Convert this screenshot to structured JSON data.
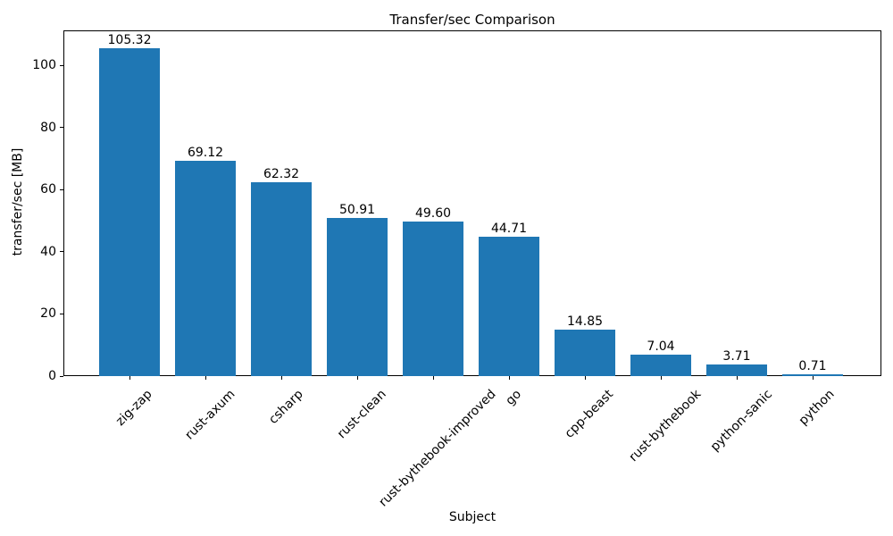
{
  "chart_data": {
    "type": "bar",
    "title": "Transfer/sec Comparison",
    "xlabel": "Subject",
    "ylabel": "transfer/sec [MB]",
    "categories": [
      "zig-zap",
      "rust-axum",
      "csharp",
      "rust-clean",
      "rust-bythebook-improved",
      "go",
      "cpp-beast",
      "rust-bythebook",
      "python-sanic",
      "python"
    ],
    "values": [
      105.32,
      69.12,
      62.32,
      50.91,
      49.6,
      44.71,
      14.85,
      7.04,
      3.71,
      0.71
    ],
    "value_labels": [
      "105.32",
      "69.12",
      "62.32",
      "50.91",
      "49.60",
      "44.71",
      "14.85",
      "7.04",
      "3.71",
      "0.71"
    ],
    "yticks": [
      0,
      20,
      40,
      60,
      80,
      100
    ],
    "ylim": [
      0,
      111.2
    ],
    "xtick_rotation": 45,
    "grid": false,
    "legend": false,
    "bar_color": "#1f77b4",
    "axis_color": "#000000",
    "background_color": "#ffffff"
  }
}
